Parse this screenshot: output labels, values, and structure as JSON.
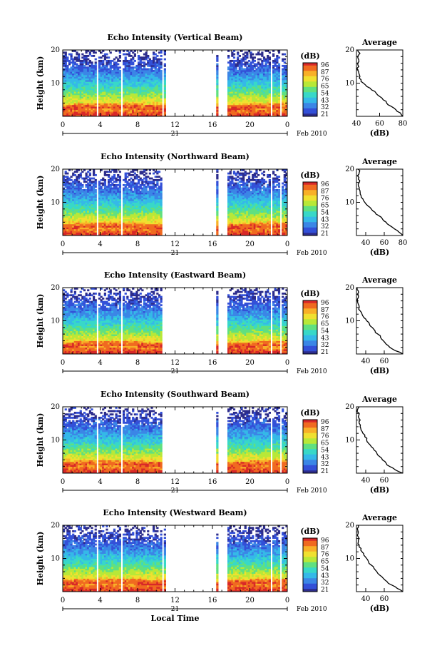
{
  "chart_data": [
    {
      "type": "heatmap",
      "title": "Echo Intensity (Vertical Beam)",
      "ylabel": "Height (km)",
      "xlabel": "",
      "ylim": [
        0,
        20
      ],
      "y_ticks": [
        "10",
        "20"
      ],
      "x_ticks": [
        "0",
        "4",
        "8",
        "12",
        "16",
        "20",
        "0"
      ],
      "x_range_hours": [
        0,
        24
      ],
      "date_day": "21",
      "date_month": "Feb 2010",
      "colorbar_unit": "(dB)",
      "colorbar_ticks": [
        "96",
        "87",
        "76",
        "65",
        "54",
        "43",
        "32",
        "21"
      ],
      "data_gaps_hours": [
        [
          3.7,
          3.9
        ],
        [
          6.2,
          6.4
        ],
        [
          10.6,
          10.8
        ],
        [
          11.0,
          16.3
        ],
        [
          16.5,
          17.6
        ],
        [
          22.2,
          22.4
        ],
        [
          23.2,
          23.4
        ]
      ],
      "average_profile": {
        "title": "Average",
        "xlabel": "(dB)",
        "x_ticks": [
          "40",
          "60",
          "80"
        ],
        "xlim": [
          40,
          80
        ],
        "y_ticks": [
          "10",
          "20"
        ],
        "ylim": [
          0,
          20
        ],
        "points": [
          [
            80,
            0
          ],
          [
            78,
            1
          ],
          [
            74,
            2
          ],
          [
            70,
            3
          ],
          [
            66,
            4
          ],
          [
            63,
            5
          ],
          [
            60,
            6
          ],
          [
            57,
            7
          ],
          [
            53,
            8
          ],
          [
            49,
            9
          ],
          [
            46,
            10
          ],
          [
            44,
            11
          ],
          [
            43,
            12
          ],
          [
            42,
            13
          ],
          [
            41,
            14
          ],
          [
            42,
            15
          ],
          [
            41,
            16
          ],
          [
            42,
            17
          ],
          [
            41,
            18
          ],
          [
            43,
            19
          ],
          [
            41,
            20
          ]
        ]
      }
    },
    {
      "type": "heatmap",
      "title": "Echo Intensity (Northward Beam)",
      "ylabel": "Height (km)",
      "xlabel": "",
      "ylim": [
        0,
        20
      ],
      "y_ticks": [
        "10",
        "20"
      ],
      "x_ticks": [
        "0",
        "4",
        "8",
        "12",
        "16",
        "20",
        "0"
      ],
      "x_range_hours": [
        0,
        24
      ],
      "date_day": "21",
      "date_month": "Feb 2010",
      "colorbar_unit": "(dB)",
      "colorbar_ticks": [
        "96",
        "87",
        "76",
        "65",
        "54",
        "43",
        "32",
        "21"
      ],
      "data_gaps_hours": [
        [
          3.7,
          3.9
        ],
        [
          6.2,
          6.4
        ],
        [
          10.6,
          16.3
        ],
        [
          16.5,
          17.6
        ],
        [
          22.2,
          22.4
        ],
        [
          23.2,
          23.4
        ]
      ],
      "average_profile": {
        "title": "Average",
        "xlabel": "(dB)",
        "x_ticks": [
          "40",
          "60",
          "80"
        ],
        "xlim": [
          30,
          80
        ],
        "y_ticks": [
          "10",
          "20"
        ],
        "ylim": [
          0,
          20
        ],
        "points": [
          [
            80,
            0
          ],
          [
            76,
            1
          ],
          [
            71,
            2
          ],
          [
            66,
            3
          ],
          [
            62,
            4
          ],
          [
            58,
            5
          ],
          [
            54,
            6
          ],
          [
            50,
            7
          ],
          [
            46,
            8
          ],
          [
            42,
            9
          ],
          [
            39,
            10
          ],
          [
            37,
            11
          ],
          [
            35,
            12
          ],
          [
            34,
            13
          ],
          [
            33,
            14
          ],
          [
            32,
            15
          ],
          [
            33,
            16
          ],
          [
            32,
            17
          ],
          [
            31,
            18
          ],
          [
            33,
            19
          ],
          [
            32,
            20
          ]
        ]
      }
    },
    {
      "type": "heatmap",
      "title": "Echo Intensity (Eastward Beam)",
      "ylabel": "Height (km)",
      "xlabel": "",
      "ylim": [
        0,
        20
      ],
      "y_ticks": [
        "10",
        "20"
      ],
      "x_ticks": [
        "0",
        "4",
        "8",
        "12",
        "16",
        "20",
        "0"
      ],
      "x_range_hours": [
        0,
        24
      ],
      "date_day": "21",
      "date_month": "Feb 2010",
      "colorbar_unit": "(dB)",
      "colorbar_ticks": [
        "96",
        "87",
        "76",
        "65",
        "54",
        "43",
        "32",
        "21"
      ],
      "data_gaps_hours": [
        [
          3.7,
          3.9
        ],
        [
          6.2,
          6.4
        ],
        [
          10.6,
          16.3
        ],
        [
          16.5,
          17.6
        ],
        [
          22.2,
          22.4
        ],
        [
          23.2,
          23.4
        ]
      ],
      "average_profile": {
        "title": "Average",
        "xlabel": "(dB)",
        "x_ticks": [
          "40",
          "60"
        ],
        "xlim": [
          30,
          80
        ],
        "y_ticks": [
          "10",
          "20"
        ],
        "ylim": [
          0,
          20
        ],
        "points": [
          [
            80,
            0
          ],
          [
            72,
            1
          ],
          [
            66,
            2
          ],
          [
            62,
            3
          ],
          [
            59,
            4
          ],
          [
            56,
            5
          ],
          [
            53,
            6
          ],
          [
            50,
            7
          ],
          [
            47,
            8
          ],
          [
            44,
            9
          ],
          [
            41,
            10
          ],
          [
            38,
            11
          ],
          [
            36,
            12
          ],
          [
            34,
            13
          ],
          [
            33,
            14
          ],
          [
            32,
            15
          ],
          [
            31,
            16
          ],
          [
            32,
            17
          ],
          [
            31,
            18
          ],
          [
            32,
            19
          ],
          [
            31,
            20
          ]
        ]
      }
    },
    {
      "type": "heatmap",
      "title": "Echo Intensity (Southward Beam)",
      "ylabel": "Height (km)",
      "xlabel": "",
      "ylim": [
        0,
        20
      ],
      "y_ticks": [
        "10",
        "20"
      ],
      "x_ticks": [
        "0",
        "4",
        "8",
        "12",
        "16",
        "20",
        "0"
      ],
      "x_range_hours": [
        0,
        24
      ],
      "date_day": "21",
      "date_month": "Feb 2010",
      "colorbar_unit": "(dB)",
      "colorbar_ticks": [
        "96",
        "87",
        "76",
        "65",
        "54",
        "43",
        "32",
        "21"
      ],
      "data_gaps_hours": [
        [
          3.7,
          3.9
        ],
        [
          6.2,
          6.4
        ],
        [
          10.6,
          16.3
        ],
        [
          16.5,
          17.6
        ],
        [
          22.2,
          22.4
        ],
        [
          23.2,
          23.4
        ]
      ],
      "average_profile": {
        "title": "Average",
        "xlabel": "(dB)",
        "x_ticks": [
          "40",
          "60"
        ],
        "xlim": [
          30,
          80
        ],
        "y_ticks": [
          "10",
          "20"
        ],
        "ylim": [
          0,
          20
        ],
        "points": [
          [
            80,
            0
          ],
          [
            72,
            1
          ],
          [
            66,
            2
          ],
          [
            62,
            3
          ],
          [
            58,
            4
          ],
          [
            55,
            5
          ],
          [
            52,
            6
          ],
          [
            49,
            7
          ],
          [
            46,
            8
          ],
          [
            43,
            9
          ],
          [
            41,
            10
          ],
          [
            39,
            11
          ],
          [
            37,
            12
          ],
          [
            35,
            13
          ],
          [
            34,
            14
          ],
          [
            33,
            15
          ],
          [
            34,
            16
          ],
          [
            32,
            17
          ],
          [
            33,
            18
          ],
          [
            31,
            19
          ],
          [
            33,
            20
          ]
        ]
      }
    },
    {
      "type": "heatmap",
      "title": "Echo Intensity (Westward Beam)",
      "ylabel": "Height (km)",
      "xlabel": "Local Time",
      "ylim": [
        0,
        20
      ],
      "y_ticks": [
        "10",
        "20"
      ],
      "x_ticks": [
        "0",
        "4",
        "8",
        "12",
        "16",
        "20",
        "0"
      ],
      "x_range_hours": [
        0,
        24
      ],
      "date_day": "21",
      "date_month": "Feb 2010",
      "colorbar_unit": "(dB)",
      "colorbar_ticks": [
        "96",
        "87",
        "76",
        "65",
        "54",
        "43",
        "32",
        "21"
      ],
      "data_gaps_hours": [
        [
          3.7,
          3.9
        ],
        [
          6.2,
          6.4
        ],
        [
          10.6,
          10.8
        ],
        [
          11.0,
          16.3
        ],
        [
          16.5,
          17.6
        ],
        [
          22.2,
          22.4
        ],
        [
          23.2,
          23.4
        ]
      ],
      "average_profile": {
        "title": "Average",
        "xlabel": "(dB)",
        "x_ticks": [
          "40",
          "60"
        ],
        "xlim": [
          30,
          80
        ],
        "y_ticks": [
          "10",
          "20"
        ],
        "ylim": [
          0,
          20
        ],
        "points": [
          [
            80,
            0
          ],
          [
            74,
            1
          ],
          [
            68,
            2
          ],
          [
            63,
            3
          ],
          [
            59,
            4
          ],
          [
            55,
            5
          ],
          [
            52,
            6
          ],
          [
            49,
            7
          ],
          [
            46,
            8
          ],
          [
            43,
            9
          ],
          [
            41,
            10
          ],
          [
            38,
            11
          ],
          [
            36,
            12
          ],
          [
            35,
            13
          ],
          [
            33,
            14
          ],
          [
            32,
            15
          ],
          [
            33,
            16
          ],
          [
            31,
            17
          ],
          [
            32,
            18
          ],
          [
            31,
            19
          ],
          [
            32,
            20
          ]
        ]
      }
    }
  ],
  "colors": {
    "colormap": [
      "#2c2c8c",
      "#3350d8",
      "#3b86e6",
      "#35b9e8",
      "#38d8c8",
      "#60e080",
      "#b8e838",
      "#f0e030",
      "#f8b028",
      "#f06a20",
      "#d82828"
    ]
  }
}
